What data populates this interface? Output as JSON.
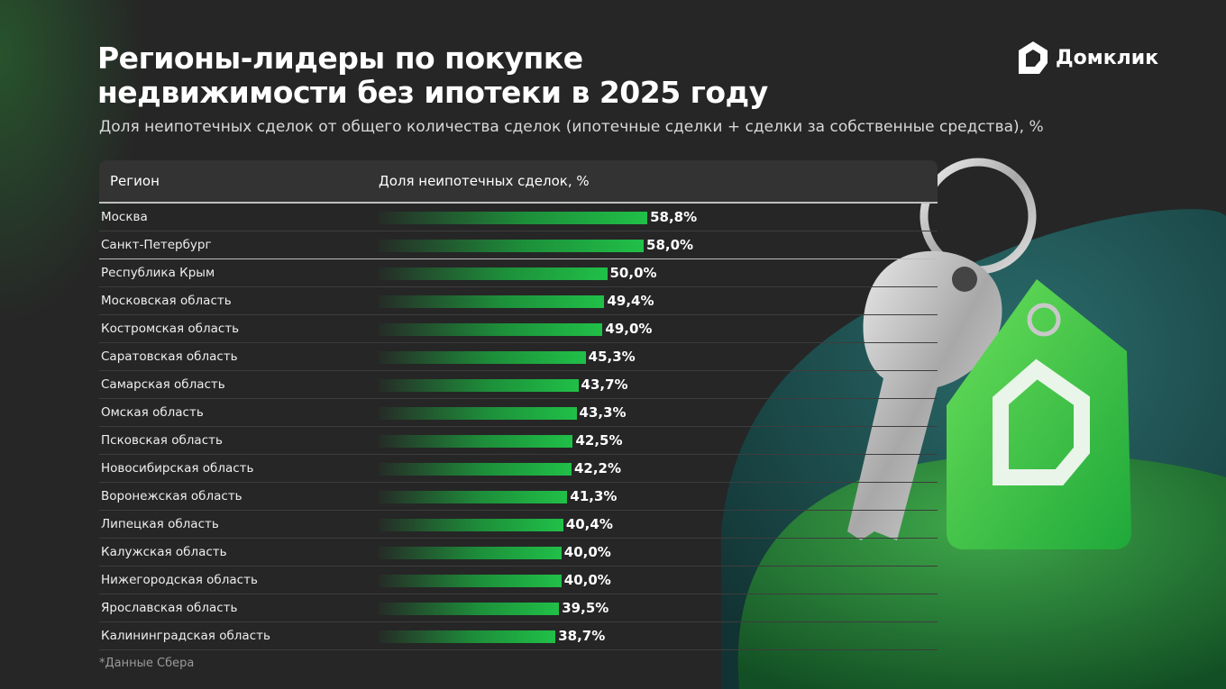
{
  "title_line1": "Регионы-лидеры по покупке",
  "title_line2": "недвижимости без ипотеки в 2025 году",
  "subtitle": "Доля неипотечных сделок от общего количества сделок (ипотечные сделки + сделки за собственные средства), %",
  "logo_text": "Домклик",
  "footnote": "*Данные Сбера",
  "colors": {
    "background": "#262626",
    "bar": "#20c048",
    "accent": "#3cc84a"
  },
  "chart_data": {
    "type": "bar",
    "orientation": "horizontal",
    "columns": [
      "Регион",
      "Доля неипотечных сделок, %"
    ],
    "categories": [
      "Москва",
      "Санкт-Петербург",
      "Республика Крым",
      "Московская область",
      "Костромская область",
      "Саратовская область",
      "Самарская область",
      "Омская область",
      "Псковская область",
      "Новосибирская область",
      "Воронежская область",
      "Липецкая область",
      "Калужская область",
      "Нижегородская область",
      "Ярославская область",
      "Калининградская область"
    ],
    "values": [
      58.8,
      58.0,
      50.0,
      49.4,
      49.0,
      45.3,
      43.7,
      43.3,
      42.5,
      42.2,
      41.3,
      40.4,
      40.0,
      40.0,
      39.5,
      38.7
    ],
    "labels": [
      "58,8%",
      "58,0%",
      "50,0%",
      "49,4%",
      "49,0%",
      "45,3%",
      "43,7%",
      "43,3%",
      "42,5%",
      "42,2%",
      "41,3%",
      "40,4%",
      "40,0%",
      "40,0%",
      "39,5%",
      "38,7%"
    ],
    "xlim": [
      0,
      100
    ],
    "grid": false
  }
}
